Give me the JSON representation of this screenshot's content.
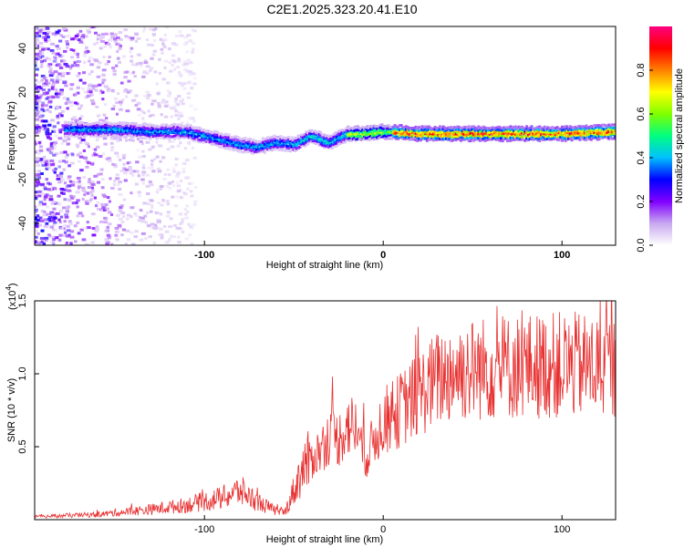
{
  "title": "C2E1.2025.323.20.41.E10",
  "chart_data": [
    {
      "type": "heatmap",
      "name": "spectrogram",
      "xlabel": "Height of straight line (km)",
      "ylabel": "Frequency (Hz)",
      "xlim": [
        -195,
        130
      ],
      "ylim": [
        -50,
        50
      ],
      "xticks": [
        -100,
        0,
        100
      ],
      "yticks": [
        -40,
        -20,
        0,
        20,
        40
      ],
      "ridge": {
        "x": [
          -170,
          -150,
          -130,
          -110,
          -100,
          -90,
          -80,
          -70,
          -60,
          -50,
          -40,
          -30,
          -20,
          -10,
          0,
          20,
          40,
          60,
          80,
          100,
          130
        ],
        "freq": [
          3,
          3,
          2,
          2,
          0,
          -2,
          -4,
          -5,
          -3,
          -4,
          0,
          -3,
          1,
          1,
          2,
          1,
          1,
          1,
          1,
          1,
          2
        ]
      },
      "colorbar": {
        "label": "Normalized spectral amplitude",
        "range": [
          0,
          1
        ],
        "ticks": [
          0.0,
          0.2,
          0.4,
          0.6,
          0.8
        ],
        "colors": [
          "#ffffff",
          "#c8a8f0",
          "#8000ff",
          "#0000ff",
          "#00c0ff",
          "#00ff80",
          "#80ff00",
          "#ffff00",
          "#ff8000",
          "#ff0000",
          "#ff0080"
        ]
      }
    },
    {
      "type": "line",
      "name": "snr",
      "xlabel": "Height of straight line (km)",
      "ylabel": "SNR (10 * v/v)",
      "scale_label": "(x10",
      "scale_exp": "4",
      "scale_close": ")",
      "xlim": [
        -195,
        130
      ],
      "ylim": [
        0,
        15000
      ],
      "xticks": [
        -100,
        0,
        100
      ],
      "yticks": [
        5000,
        10000,
        15000
      ],
      "ytick_labels": [
        "0.5",
        "1.0",
        "1.5"
      ],
      "color": "#e83030",
      "envelope": {
        "x": [
          -195,
          -160,
          -130,
          -110,
          -90,
          -80,
          -70,
          -60,
          -55,
          -50,
          -45,
          -40,
          -35,
          -30,
          -25,
          -20,
          -15,
          -10,
          -5,
          0,
          5,
          10,
          20,
          30,
          40,
          60,
          80,
          100,
          120,
          130
        ],
        "y": [
          200,
          350,
          700,
          1000,
          1500,
          2000,
          1200,
          600,
          500,
          2000,
          3500,
          4200,
          4800,
          5800,
          5500,
          6500,
          6300,
          4200,
          5500,
          6800,
          7000,
          7600,
          8600,
          9600,
          10200,
          10400,
          10500,
          10600,
          10500,
          10400
        ]
      }
    }
  ]
}
